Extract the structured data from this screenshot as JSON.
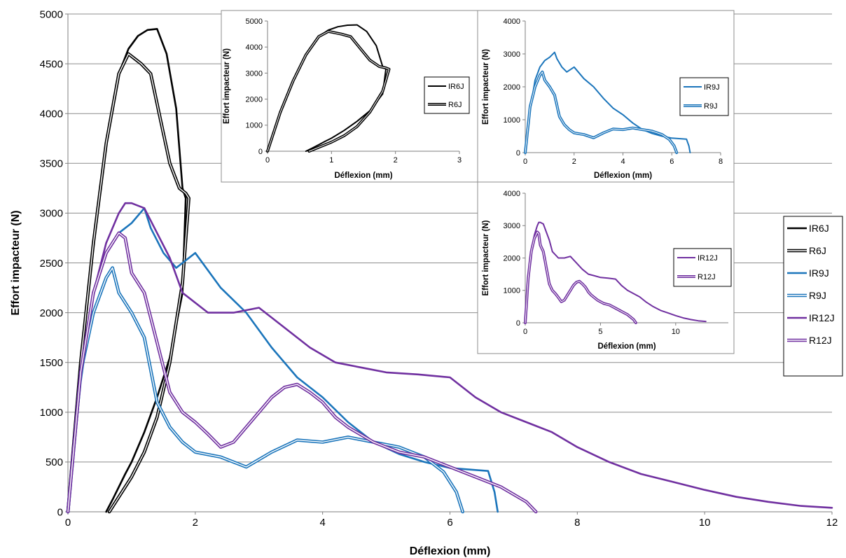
{
  "chart_data": [
    {
      "type": "line",
      "xlabel": "Déflexion (mm)",
      "ylabel": "Effort impacteur (N)",
      "xlim": [
        0,
        12
      ],
      "ylim": [
        0,
        5000
      ],
      "xticks": [
        "0",
        "2",
        "4",
        "6",
        "8",
        "10",
        "12"
      ],
      "yticks": [
        "0",
        "500",
        "1000",
        "1500",
        "2000",
        "2500",
        "3000",
        "3500",
        "4000",
        "4500",
        "5000"
      ],
      "grid": "horizontal",
      "legend_position": "right",
      "series": [
        {
          "name": "IR6J",
          "color": "#000000",
          "style": "solid",
          "x": [
            0,
            0.2,
            0.4,
            0.6,
            0.8,
            0.95,
            1.1,
            1.25,
            1.4,
            1.55,
            1.7,
            1.8,
            1.85,
            1.8,
            1.6,
            1.4,
            1.2,
            1.0,
            0.9,
            0.8,
            0.7,
            0.6
          ],
          "y": [
            0,
            1500,
            2700,
            3700,
            4400,
            4650,
            4780,
            4840,
            4850,
            4600,
            4050,
            3250,
            3150,
            2200,
            1550,
            1150,
            800,
            500,
            380,
            250,
            120,
            0
          ]
        },
        {
          "name": "R6J",
          "color": "#000000",
          "style": "double",
          "x": [
            0,
            0.2,
            0.4,
            0.6,
            0.8,
            0.95,
            1.05,
            1.15,
            1.3,
            1.45,
            1.6,
            1.75,
            1.85,
            1.9,
            1.8,
            1.6,
            1.4,
            1.2,
            1.0,
            0.8,
            0.65
          ],
          "y": [
            0,
            1500,
            2700,
            3700,
            4400,
            4600,
            4550,
            4500,
            4400,
            3950,
            3500,
            3250,
            3200,
            3150,
            2300,
            1500,
            950,
            600,
            350,
            150,
            0
          ]
        },
        {
          "name": "IR9J",
          "color": "#1b75bb",
          "style": "solid",
          "x": [
            0,
            0.2,
            0.4,
            0.6,
            0.8,
            1.0,
            1.2,
            1.3,
            1.5,
            1.7,
            2.0,
            2.4,
            2.8,
            3.2,
            3.6,
            4.0,
            4.4,
            4.8,
            5.2,
            5.6,
            6.0,
            6.4,
            6.6,
            6.7,
            6.75
          ],
          "y": [
            0,
            1300,
            2200,
            2600,
            2800,
            2900,
            3050,
            2850,
            2600,
            2450,
            2600,
            2250,
            2000,
            1650,
            1350,
            1150,
            900,
            700,
            580,
            500,
            440,
            420,
            410,
            200,
            0
          ]
        },
        {
          "name": "R9J",
          "color": "#1b75bb",
          "style": "double",
          "x": [
            0,
            0.2,
            0.4,
            0.6,
            0.7,
            0.8,
            1.0,
            1.2,
            1.4,
            1.6,
            1.8,
            2.0,
            2.4,
            2.8,
            3.2,
            3.6,
            4.0,
            4.4,
            4.8,
            5.2,
            5.6,
            5.9,
            6.1,
            6.2
          ],
          "y": [
            0,
            1400,
            2000,
            2350,
            2450,
            2200,
            2000,
            1750,
            1100,
            850,
            700,
            600,
            550,
            450,
            600,
            720,
            700,
            750,
            700,
            650,
            550,
            400,
            200,
            0
          ]
        },
        {
          "name": "IR12J",
          "color": "#7030a0",
          "style": "solid",
          "x": [
            0,
            0.2,
            0.4,
            0.6,
            0.8,
            0.9,
            1.0,
            1.2,
            1.4,
            1.6,
            1.8,
            2.2,
            2.6,
            3.0,
            3.4,
            3.8,
            4.2,
            4.6,
            5.0,
            5.5,
            6.0,
            6.4,
            6.8,
            7.2,
            7.6,
            8.0,
            8.5,
            9.0,
            9.5,
            10.0,
            10.5,
            11.0,
            11.5,
            12.0
          ],
          "y": [
            0,
            1400,
            2200,
            2700,
            3000,
            3100,
            3100,
            3050,
            2800,
            2550,
            2200,
            2000,
            2000,
            2050,
            1850,
            1650,
            1500,
            1450,
            1400,
            1380,
            1350,
            1150,
            1000,
            900,
            800,
            650,
            500,
            380,
            300,
            220,
            150,
            100,
            60,
            40
          ]
        },
        {
          "name": "R12J",
          "color": "#7030a0",
          "style": "double",
          "x": [
            0,
            0.2,
            0.4,
            0.6,
            0.8,
            0.9,
            1.0,
            1.2,
            1.4,
            1.6,
            1.8,
            2.0,
            2.2,
            2.4,
            2.6,
            2.8,
            3.0,
            3.2,
            3.4,
            3.6,
            3.8,
            4.0,
            4.2,
            4.4,
            4.8,
            5.2,
            5.6,
            6.0,
            6.4,
            6.8,
            7.2,
            7.35
          ],
          "y": [
            0,
            1400,
            2200,
            2600,
            2800,
            2750,
            2400,
            2200,
            1700,
            1200,
            1000,
            900,
            780,
            650,
            700,
            850,
            1000,
            1150,
            1250,
            1280,
            1200,
            1100,
            950,
            850,
            700,
            600,
            550,
            450,
            350,
            250,
            100,
            0
          ]
        }
      ]
    },
    {
      "type": "line",
      "xlabel": "Déflexion (mm)",
      "ylabel": "Effort impacteur (N)",
      "xlim": [
        0,
        3
      ],
      "ylim": [
        0,
        5000
      ],
      "xticks": [
        "0",
        "1",
        "2",
        "3"
      ],
      "yticks": [
        "0",
        "1000",
        "2000",
        "3000",
        "4000",
        "5000"
      ],
      "legend_position": "right",
      "series": [
        {
          "name": "IR6J",
          "color": "#000000",
          "style": "solid",
          "x": [
            0,
            0.2,
            0.4,
            0.6,
            0.8,
            0.95,
            1.1,
            1.25,
            1.4,
            1.55,
            1.7,
            1.8,
            1.85,
            1.8,
            1.6,
            1.4,
            1.2,
            1.0,
            0.9,
            0.8,
            0.7,
            0.6
          ],
          "y": [
            0,
            1500,
            2700,
            3700,
            4400,
            4650,
            4780,
            4840,
            4850,
            4600,
            4050,
            3250,
            3150,
            2200,
            1550,
            1150,
            800,
            500,
            380,
            250,
            120,
            0
          ]
        },
        {
          "name": "R6J",
          "color": "#000000",
          "style": "double",
          "x": [
            0,
            0.2,
            0.4,
            0.6,
            0.8,
            0.95,
            1.05,
            1.15,
            1.3,
            1.45,
            1.6,
            1.75,
            1.85,
            1.9,
            1.8,
            1.6,
            1.4,
            1.2,
            1.0,
            0.8,
            0.65
          ],
          "y": [
            0,
            1500,
            2700,
            3700,
            4400,
            4600,
            4550,
            4500,
            4400,
            3950,
            3500,
            3250,
            3200,
            3150,
            2300,
            1500,
            950,
            600,
            350,
            150,
            0
          ]
        }
      ]
    },
    {
      "type": "line",
      "xlabel": "Déflexion (mm)",
      "ylabel": "Effort impacteur (N)",
      "xlim": [
        0,
        8
      ],
      "ylim": [
        0,
        4000
      ],
      "xticks": [
        "0",
        "2",
        "4",
        "6",
        "8"
      ],
      "yticks": [
        "0",
        "1000",
        "2000",
        "3000",
        "4000"
      ],
      "legend_position": "top-right",
      "series": [
        {
          "name": "IR9J",
          "color": "#1b75bb",
          "style": "solid",
          "x": [
            0,
            0.2,
            0.4,
            0.6,
            0.8,
            1.0,
            1.2,
            1.3,
            1.5,
            1.7,
            2.0,
            2.4,
            2.8,
            3.2,
            3.6,
            4.0,
            4.4,
            4.8,
            5.2,
            5.6,
            6.0,
            6.4,
            6.6,
            6.7,
            6.75
          ],
          "y": [
            0,
            1300,
            2200,
            2600,
            2800,
            2900,
            3050,
            2850,
            2600,
            2450,
            2600,
            2250,
            2000,
            1650,
            1350,
            1150,
            900,
            700,
            580,
            500,
            440,
            420,
            410,
            200,
            0
          ]
        },
        {
          "name": "R9J",
          "color": "#1b75bb",
          "style": "double",
          "x": [
            0,
            0.2,
            0.4,
            0.6,
            0.7,
            0.8,
            1.0,
            1.2,
            1.4,
            1.6,
            1.8,
            2.0,
            2.4,
            2.8,
            3.2,
            3.6,
            4.0,
            4.4,
            4.8,
            5.2,
            5.6,
            5.9,
            6.1,
            6.2
          ],
          "y": [
            0,
            1400,
            2000,
            2350,
            2450,
            2200,
            2000,
            1750,
            1100,
            850,
            700,
            600,
            550,
            450,
            600,
            720,
            700,
            750,
            700,
            650,
            550,
            400,
            200,
            0
          ]
        }
      ]
    },
    {
      "type": "line",
      "xlabel": "Déflexion (mm)",
      "ylabel": "Effort impacteur (N)",
      "xlim": [
        0,
        13.5
      ],
      "ylim": [
        0,
        4000
      ],
      "xticks": [
        "0",
        "5",
        "10"
      ],
      "yticks": [
        "0",
        "1000",
        "2000",
        "3000",
        "4000"
      ],
      "legend_position": "right",
      "series": [
        {
          "name": "IR12J",
          "color": "#7030a0",
          "style": "solid",
          "x": [
            0,
            0.2,
            0.4,
            0.6,
            0.8,
            0.9,
            1.0,
            1.2,
            1.4,
            1.6,
            1.8,
            2.2,
            2.6,
            3.0,
            3.4,
            3.8,
            4.2,
            4.6,
            5.0,
            5.5,
            6.0,
            6.4,
            6.8,
            7.2,
            7.6,
            8.0,
            8.5,
            9.0,
            9.5,
            10.0,
            10.5,
            11.0,
            11.5,
            12.0
          ],
          "y": [
            0,
            1400,
            2200,
            2700,
            3000,
            3100,
            3100,
            3050,
            2800,
            2550,
            2200,
            2000,
            2000,
            2050,
            1850,
            1650,
            1500,
            1450,
            1400,
            1380,
            1350,
            1150,
            1000,
            900,
            800,
            650,
            500,
            380,
            300,
            220,
            150,
            100,
            60,
            40
          ]
        },
        {
          "name": "R12J",
          "color": "#7030a0",
          "style": "double",
          "x": [
            0,
            0.2,
            0.4,
            0.6,
            0.8,
            0.9,
            1.0,
            1.2,
            1.4,
            1.6,
            1.8,
            2.0,
            2.2,
            2.4,
            2.6,
            2.8,
            3.0,
            3.2,
            3.4,
            3.6,
            3.8,
            4.0,
            4.2,
            4.4,
            4.8,
            5.2,
            5.6,
            6.0,
            6.4,
            6.8,
            7.2,
            7.35
          ],
          "y": [
            0,
            1400,
            2200,
            2600,
            2800,
            2750,
            2400,
            2200,
            1700,
            1200,
            1000,
            900,
            780,
            650,
            700,
            850,
            1000,
            1150,
            1250,
            1280,
            1200,
            1100,
            950,
            850,
            700,
            600,
            550,
            450,
            350,
            250,
            100,
            0
          ]
        }
      ]
    }
  ]
}
